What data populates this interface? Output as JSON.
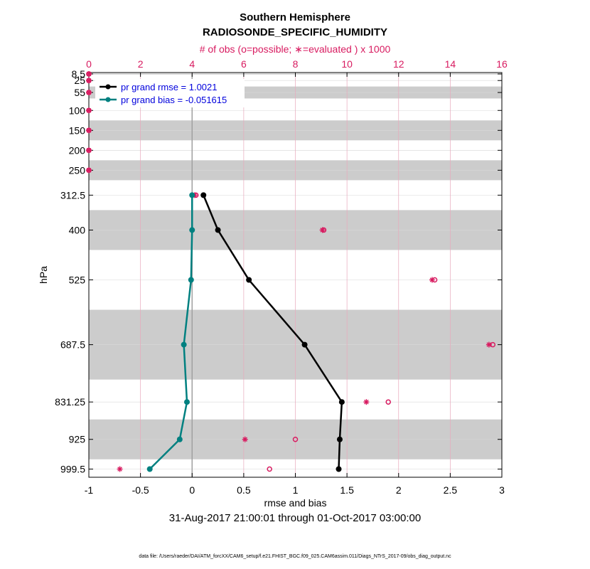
{
  "title_line1": "Southern Hemisphere",
  "title_line2": "RADIOSONDE_SPECIFIC_HUMIDITY",
  "top_axis_label": "# of obs (o=possible; ∗=evaluated ) x 1000",
  "date_range": "31-Aug-2017 21:00:01 through 01-Oct-2017 03:00:00",
  "footer": "data file: /Users/raeder/DAI/ATM_forcXX/CAM6_setup/f.e21.FHIST_BGC.f09_025.CAM6assim.011/Diags_NTrS_2017-09/obs_diag_output.nc",
  "colors": {
    "rmse": "#000000",
    "bias": "#008080",
    "obs": "#d81b60",
    "band": "#cccccc",
    "legend_text": "#0000dd"
  },
  "chart_data": {
    "type": "line",
    "title": "Southern Hemisphere RADIOSONDE_SPECIFIC_HUMIDITY",
    "xlabel": "rmse and bias",
    "ylabel": "hPa",
    "xlim": [
      -1,
      3
    ],
    "x_ticks": [
      "-1",
      "-0.5",
      "0",
      "0.5",
      "1",
      "1.5",
      "2",
      "2.5",
      "3"
    ],
    "top_xlim": [
      0,
      16
    ],
    "top_ticks": [
      "0",
      "2",
      "4",
      "6",
      "8",
      "10",
      "12",
      "14",
      "16"
    ],
    "levels": [
      8.5,
      25,
      55,
      100,
      150,
      200,
      250,
      312.5,
      400,
      525,
      687.5,
      831.25,
      925,
      999.5
    ],
    "level_labels": [
      "8.5",
      "25",
      "55",
      "100",
      "150",
      "200",
      "250",
      "312.5",
      "400",
      "525",
      "687.5",
      "831.25",
      "925",
      "999.5"
    ],
    "shaded_bands": [
      {
        "top": 7,
        "bottom": 10
      },
      {
        "top": 40,
        "bottom": 70
      },
      {
        "top": 125,
        "bottom": 175
      },
      {
        "top": 225,
        "bottom": 275
      },
      {
        "top": 350,
        "bottom": 450
      },
      {
        "top": 600,
        "bottom": 775
      },
      {
        "top": 875,
        "bottom": 975
      }
    ],
    "series": [
      {
        "name": "pr grand rmse",
        "legend": "pr grand rmse = 1.0021",
        "levels": [
          312.5,
          400,
          525,
          687.5,
          831.25,
          925,
          999.5
        ],
        "values": [
          0.11,
          0.25,
          0.55,
          1.09,
          1.45,
          1.43,
          1.42
        ]
      },
      {
        "name": "pr grand bias",
        "legend": "pr grand bias = -0.051615",
        "levels": [
          312.5,
          400,
          525,
          687.5,
          831.25,
          925,
          999.5
        ],
        "values": [
          0.0,
          0.0,
          -0.01,
          -0.08,
          -0.05,
          -0.12,
          -0.41
        ]
      }
    ],
    "obs_possible": {
      "levels": [
        8.5,
        25,
        55,
        100,
        150,
        200,
        250,
        312.5,
        400,
        525,
        687.5,
        831.25,
        925,
        999.5
      ],
      "values": [
        0.0,
        0.0,
        0.0,
        0.0,
        0.0,
        0.0,
        0.0,
        4.15,
        9.1,
        13.4,
        15.65,
        11.6,
        8.0,
        7.0
      ]
    },
    "obs_evaluated": {
      "levels": [
        8.5,
        25,
        55,
        100,
        150,
        200,
        250,
        312.5,
        400,
        525,
        687.5,
        831.25,
        925,
        999.5
      ],
      "values": [
        0.0,
        0.0,
        0.0,
        0.0,
        0.0,
        0.0,
        0.0,
        4.1,
        9.05,
        13.3,
        15.5,
        10.75,
        6.05,
        1.2
      ]
    }
  }
}
